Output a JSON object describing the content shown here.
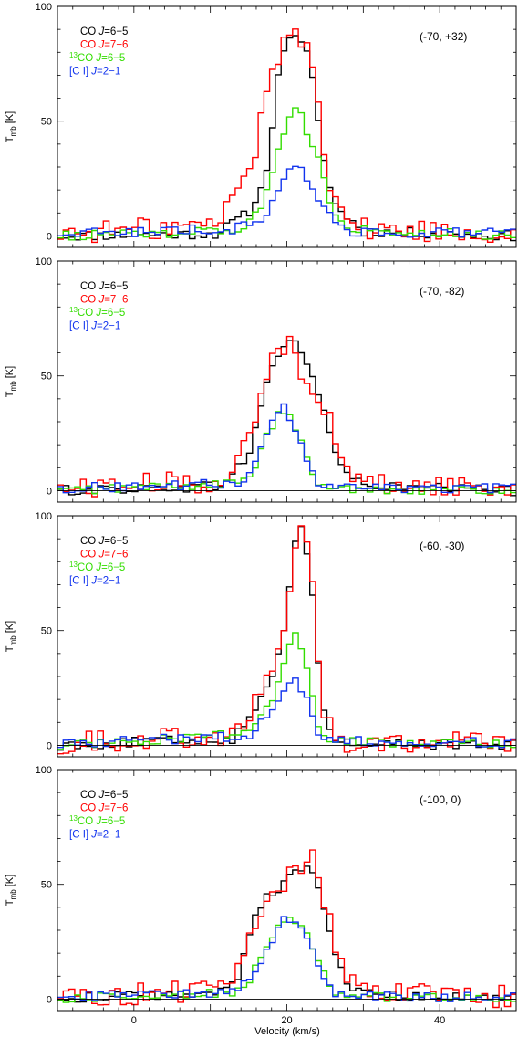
{
  "chart_data": [
    {
      "type": "line",
      "step": true,
      "position_label": "(-70, +32)",
      "xlim": [
        -10,
        50
      ],
      "ylim": [
        -5,
        100
      ],
      "xticks": [
        "0",
        "20",
        "40"
      ],
      "yticks": [
        "0",
        "50",
        "100"
      ],
      "ylabel": {
        "main": "T",
        "sub": "mb",
        "unit": "[K]"
      },
      "legend": [
        {
          "pre": "",
          "sup": "",
          "species": "CO",
          "italic": "J",
          "rest": "=6−5",
          "color": "#000000"
        },
        {
          "pre": "",
          "sup": "",
          "species": "CO",
          "italic": "J",
          "rest": "=7−6",
          "color": "#ff0000"
        },
        {
          "pre": "",
          "sup": "13",
          "species": "CO",
          "italic": "J",
          "rest": "=6−5",
          "color": "#33dd00"
        },
        {
          "pre": "",
          "sup": "",
          "species": "[C I]",
          "italic": "J",
          "rest": "=2−1",
          "color": "#1133ee"
        }
      ],
      "series": [
        {
          "name": "CO J=6-5",
          "color": "#000000",
          "x": [
            -10,
            11,
            13,
            15,
            17,
            18,
            19,
            20,
            21,
            22,
            23,
            24,
            25,
            26,
            28,
            30,
            50
          ],
          "y": [
            0,
            1,
            6,
            10,
            22,
            45,
            72,
            88,
            86,
            83,
            76,
            55,
            30,
            15,
            8,
            2,
            0
          ]
        },
        {
          "name": "CO J=7-6",
          "color": "#ff0000",
          "x": [
            -10,
            11,
            13,
            15,
            16,
            17,
            18,
            19,
            20,
            21,
            22,
            23,
            24,
            25,
            26,
            28,
            30,
            50
          ],
          "y": [
            1,
            5,
            18,
            28,
            40,
            55,
            70,
            80,
            89,
            88,
            82,
            85,
            66,
            35,
            18,
            8,
            3,
            1
          ]
        },
        {
          "name": "13CO J=6-5",
          "color": "#33dd00",
          "x": [
            -10,
            13,
            15,
            16,
            17,
            18,
            19,
            20,
            21,
            22,
            23,
            24,
            25,
            26,
            28,
            50
          ],
          "y": [
            0,
            2,
            5,
            10,
            16,
            28,
            40,
            50,
            55,
            55,
            40,
            38,
            22,
            10,
            3,
            0
          ]
        },
        {
          "name": "[C I] J=2-1",
          "color": "#1133ee",
          "x": [
            -10,
            13,
            15,
            17,
            18,
            19,
            20,
            21,
            22,
            23,
            24,
            25,
            26,
            28,
            50
          ],
          "y": [
            1,
            3,
            5,
            8,
            15,
            20,
            28,
            30,
            28,
            20,
            18,
            12,
            6,
            2,
            1
          ]
        }
      ]
    },
    {
      "type": "line",
      "step": true,
      "position_label": "(-70, -82)",
      "xlim": [
        -10,
        50
      ],
      "ylim": [
        -5,
        100
      ],
      "xticks": [
        "0",
        "20",
        "40"
      ],
      "yticks": [
        "0",
        "50",
        "100"
      ],
      "ylabel": {
        "main": "T",
        "sub": "mb",
        "unit": "[K]"
      },
      "legend": [
        {
          "pre": "",
          "sup": "",
          "species": "CO",
          "italic": "J",
          "rest": "=6−5",
          "color": "#000000"
        },
        {
          "pre": "",
          "sup": "",
          "species": "CO",
          "italic": "J",
          "rest": "=7−6",
          "color": "#ff0000"
        },
        {
          "pre": "",
          "sup": "13",
          "species": "CO",
          "italic": "J",
          "rest": "=6−5",
          "color": "#33dd00"
        },
        {
          "pre": "",
          "sup": "",
          "species": "[C I]",
          "italic": "J",
          "rest": "=2−1",
          "color": "#1133ee"
        }
      ],
      "series": [
        {
          "name": "CO J=6-5",
          "color": "#000000",
          "x": [
            -10,
            11,
            13,
            15,
            16,
            17,
            18,
            19,
            20,
            21,
            22,
            23,
            24,
            25,
            26,
            27,
            28,
            30,
            50
          ],
          "y": [
            0,
            2,
            8,
            15,
            28,
            42,
            55,
            60,
            63,
            66,
            60,
            52,
            44,
            34,
            20,
            12,
            7,
            2,
            0
          ]
        },
        {
          "name": "CO J=7-6",
          "color": "#ff0000",
          "x": [
            -10,
            11,
            13,
            15,
            16,
            17,
            18,
            19,
            20,
            21,
            22,
            23,
            24,
            25,
            26,
            27,
            28,
            30,
            50
          ],
          "y": [
            1,
            4,
            12,
            20,
            32,
            46,
            58,
            62,
            64,
            62,
            52,
            50,
            42,
            36,
            25,
            14,
            8,
            3,
            1
          ]
        },
        {
          "name": "13CO J=6-5",
          "color": "#33dd00",
          "x": [
            -10,
            13,
            15,
            16,
            17,
            18,
            19,
            20,
            21,
            22,
            23,
            24,
            25,
            50
          ],
          "y": [
            0,
            3,
            6,
            12,
            20,
            28,
            34,
            33,
            28,
            20,
            10,
            4,
            1,
            0
          ]
        },
        {
          "name": "[C I] J=2-1",
          "color": "#1133ee",
          "x": [
            -10,
            13,
            15,
            16,
            17,
            18,
            19,
            20,
            21,
            22,
            23,
            24,
            25,
            50
          ],
          "y": [
            1,
            3,
            6,
            12,
            20,
            30,
            37,
            35,
            28,
            20,
            10,
            4,
            1,
            1
          ]
        }
      ]
    },
    {
      "type": "line",
      "step": true,
      "position_label": "(-60, -30)",
      "xlim": [
        -10,
        50
      ],
      "ylim": [
        -5,
        100
      ],
      "xticks": [
        "0",
        "20",
        "40"
      ],
      "yticks": [
        "0",
        "50",
        "100"
      ],
      "ylabel": {
        "main": "T",
        "sub": "mb",
        "unit": "[K]"
      },
      "legend": [
        {
          "pre": "",
          "sup": "",
          "species": "CO",
          "italic": "J",
          "rest": "=6−5",
          "color": "#000000"
        },
        {
          "pre": "",
          "sup": "",
          "species": "CO",
          "italic": "J",
          "rest": "=7−6",
          "color": "#ff0000"
        },
        {
          "pre": "",
          "sup": "13",
          "species": "CO",
          "italic": "J",
          "rest": "=6−5",
          "color": "#33dd00"
        },
        {
          "pre": "",
          "sup": "",
          "species": "[C I]",
          "italic": "J",
          "rest": "=2−1",
          "color": "#1133ee"
        }
      ],
      "series": [
        {
          "name": "CO J=6-5",
          "color": "#000000",
          "x": [
            -10,
            13,
            15,
            16,
            17,
            18,
            19,
            20,
            21,
            22,
            23,
            24,
            25,
            26,
            27,
            50
          ],
          "y": [
            0,
            3,
            10,
            18,
            25,
            30,
            40,
            58,
            90,
            94,
            80,
            40,
            12,
            4,
            1,
            0
          ]
        },
        {
          "name": "CO J=7-6",
          "color": "#ff0000",
          "x": [
            -10,
            13,
            15,
            16,
            17,
            18,
            19,
            20,
            21,
            22,
            23,
            24,
            25,
            26,
            27,
            50
          ],
          "y": [
            1,
            5,
            12,
            20,
            25,
            30,
            38,
            55,
            90,
            95,
            82,
            42,
            12,
            5,
            2,
            1
          ]
        },
        {
          "name": "13CO J=6-5",
          "color": "#33dd00",
          "x": [
            -10,
            15,
            16,
            17,
            18,
            19,
            20,
            21,
            22,
            23,
            24,
            25,
            50
          ],
          "y": [
            0,
            5,
            10,
            15,
            20,
            30,
            42,
            48,
            42,
            30,
            10,
            2,
            0
          ]
        },
        {
          "name": "[C I] J=2-1",
          "color": "#1133ee",
          "x": [
            -10,
            15,
            16,
            17,
            18,
            19,
            20,
            21,
            22,
            23,
            24,
            25,
            50
          ],
          "y": [
            1,
            4,
            8,
            12,
            15,
            20,
            26,
            28,
            25,
            16,
            6,
            2,
            1
          ]
        }
      ]
    },
    {
      "type": "line",
      "step": true,
      "position_label": "(-100, 0)",
      "xlim": [
        -10,
        50
      ],
      "ylim": [
        -5,
        100
      ],
      "xticks": [
        "0",
        "20",
        "40"
      ],
      "yticks": [
        "0",
        "50",
        "100"
      ],
      "ylabel": {
        "main": "T",
        "sub": "mb",
        "unit": "[K]"
      },
      "legend": [
        {
          "pre": "",
          "sup": "",
          "species": "CO",
          "italic": "J",
          "rest": "=6−5",
          "color": "#000000"
        },
        {
          "pre": "",
          "sup": "",
          "species": "CO",
          "italic": "J",
          "rest": "=7−6",
          "color": "#ff0000"
        },
        {
          "pre": "",
          "sup": "13",
          "species": "CO",
          "italic": "J",
          "rest": "=6−5",
          "color": "#33dd00"
        },
        {
          "pre": "",
          "sup": "",
          "species": "[C I]",
          "italic": "J",
          "rest": "=2−1",
          "color": "#1133ee"
        }
      ],
      "series": [
        {
          "name": "CO J=6-5",
          "color": "#000000",
          "x": [
            -10,
            12,
            14,
            15,
            16,
            17,
            18,
            19,
            20,
            21,
            22,
            23,
            24,
            25,
            26,
            27,
            28,
            30,
            50
          ],
          "y": [
            0,
            3,
            12,
            28,
            38,
            44,
            46,
            48,
            52,
            55,
            56,
            58,
            50,
            38,
            25,
            14,
            7,
            2,
            0
          ]
        },
        {
          "name": "CO J=7-6",
          "color": "#ff0000",
          "x": [
            -10,
            12,
            14,
            15,
            16,
            17,
            18,
            19,
            20,
            21,
            22,
            23,
            24,
            25,
            26,
            27,
            28,
            30,
            50
          ],
          "y": [
            1,
            4,
            14,
            26,
            35,
            42,
            45,
            48,
            52,
            56,
            58,
            65,
            55,
            42,
            28,
            16,
            8,
            3,
            1
          ]
        },
        {
          "name": "13CO J=6-5",
          "color": "#33dd00",
          "x": [
            -10,
            13,
            15,
            16,
            17,
            18,
            19,
            20,
            21,
            22,
            23,
            24,
            25,
            26,
            27,
            50
          ],
          "y": [
            0,
            3,
            8,
            14,
            22,
            28,
            32,
            34,
            33,
            30,
            26,
            18,
            10,
            4,
            1,
            0
          ]
        },
        {
          "name": "[C I] J=2-1",
          "color": "#1133ee",
          "x": [
            -10,
            13,
            15,
            16,
            17,
            18,
            19,
            20,
            21,
            22,
            23,
            24,
            25,
            26,
            27,
            50
          ],
          "y": [
            1,
            3,
            8,
            12,
            18,
            24,
            30,
            36,
            34,
            30,
            25,
            16,
            8,
            3,
            1,
            1
          ]
        }
      ]
    }
  ],
  "xlabel": "Velocity (km/s)"
}
